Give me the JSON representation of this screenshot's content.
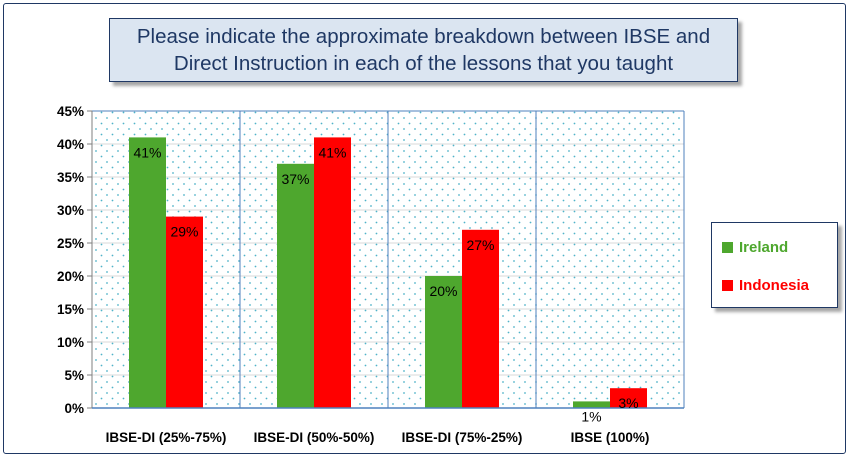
{
  "chart_data": {
    "type": "bar",
    "title": "Please indicate the approximate breakdown between IBSE and Direct Instruction in each of the lessons that you taught",
    "title_lines": [
      "Please indicate the approximate breakdown between IBSE and",
      "Direct Instruction in each of the lessons that you taught"
    ],
    "categories": [
      "IBSE-DI (25%-75%)",
      "IBSE-DI (50%-50%)",
      "IBSE-DI (75%-25%)",
      "IBSE (100%)"
    ],
    "series": [
      {
        "name": "Ireland",
        "color": "#4ea72e",
        "values": [
          41,
          37,
          20,
          1
        ],
        "labels": [
          "41%",
          "37%",
          "20%",
          "1%"
        ]
      },
      {
        "name": "Indonesia",
        "color": "#ff0000",
        "values": [
          29,
          41,
          27,
          3
        ],
        "labels": [
          "29%",
          "41%",
          "27%",
          "3%"
        ]
      }
    ],
    "ylim": [
      0,
      45
    ],
    "yticks": [
      "0%",
      "5%",
      "10%",
      "15%",
      "20%",
      "25%",
      "30%",
      "35%",
      "40%",
      "45%"
    ],
    "xlabel": "",
    "ylabel": "",
    "grid": true,
    "plot_background": "dotted light blue pattern",
    "legend_position": "right"
  },
  "colors": {
    "frame": "#1f3864",
    "title_background": "#dbe5f1",
    "title_text": "#1f3864",
    "dot_pattern": "#4fb3c9",
    "grid": "#d9d9d9",
    "category_divider": "#4f81bd"
  }
}
